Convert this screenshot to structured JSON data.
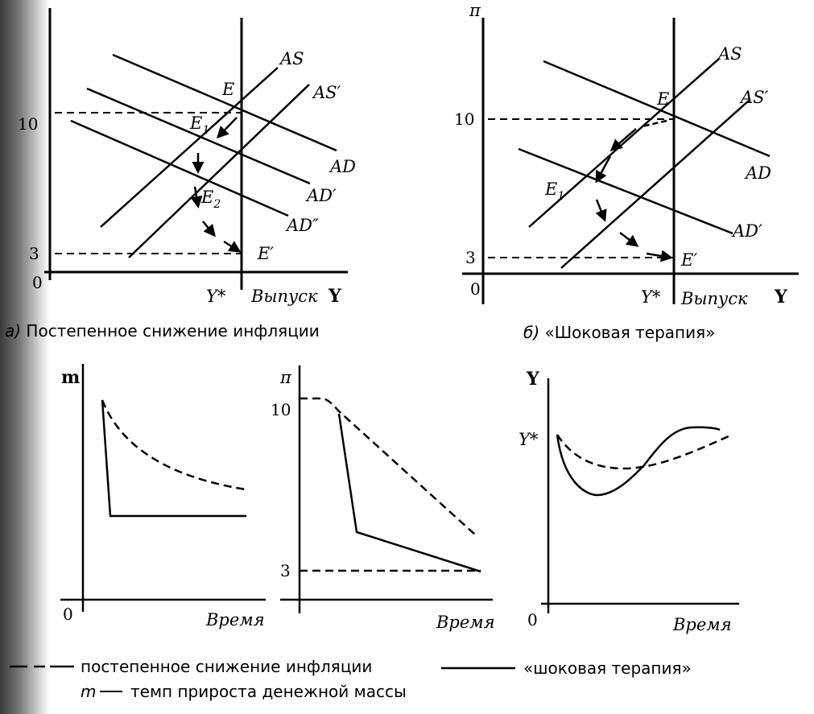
{
  "panel_a": {
    "y_axis": "",
    "x_axis": "Y",
    "y_tick_high": "10",
    "y_tick_low": "3",
    "origin": "0",
    "ystar": "Y*",
    "output": "Выпуск",
    "as": "AS",
    "as_prime": "AS′",
    "ad": "AD",
    "ad_prime": "AD′",
    "ad_dprime": "AD″",
    "e": "E",
    "e1": "E",
    "e1_sub": "1",
    "e2": "E",
    "e2_sub": "2",
    "e_prime": "E′",
    "caption_letter": "а)",
    "caption": "Постепенное снижение инфляции"
  },
  "panel_b": {
    "y_axis": "π",
    "x_axis": "Y",
    "y_tick_high": "10",
    "y_tick_low": "3",
    "origin": "0",
    "ystar": "Y*",
    "output": "Выпуск",
    "as": "AS",
    "as_prime": "AS′",
    "ad": "AD",
    "ad_prime": "AD′",
    "e": "E",
    "e1": "E",
    "e1_sub": "1",
    "e_prime": "E′",
    "caption_letter": "б)",
    "caption": "«Шоковая терапия»"
  },
  "panel_m": {
    "y_axis": "m",
    "x_axis": "Время",
    "origin": "0"
  },
  "panel_pi": {
    "y_axis": "π",
    "x_axis": "Время",
    "y_tick_high": "10",
    "y_tick_low": "3"
  },
  "panel_y": {
    "y_axis": "Y",
    "x_axis": "Время",
    "origin": "0",
    "ystar": "Y*"
  },
  "legend": {
    "dashed_label": "постепенное снижение инфляции",
    "solid_label": "«шоковая терапия»",
    "m_symbol": "m",
    "m_desc": "темп прироста денежной массы"
  }
}
